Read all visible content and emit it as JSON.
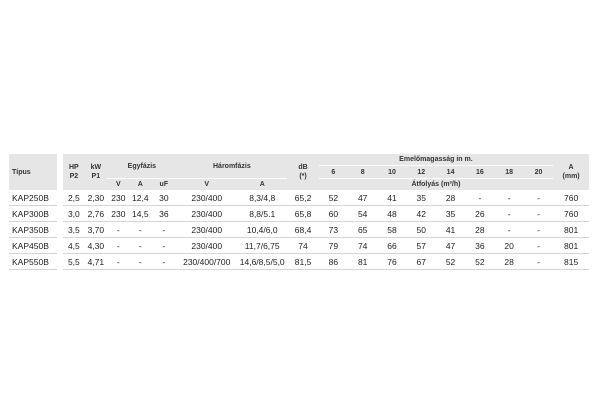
{
  "headers": {
    "tipus": "Típus",
    "hp": "HP",
    "p2": "P2",
    "kw": "kW",
    "p1": "P1",
    "egyfazis": "Egyfázis",
    "haromfazis": "Háromfázis",
    "v": "V",
    "a": "A",
    "uf": "uF",
    "db": "dB",
    "db_unit": "(*)",
    "emelomagassag": "Emelőmagasság in m.",
    "heights": [
      "6",
      "8",
      "10",
      "12",
      "14",
      "16",
      "18",
      "20"
    ],
    "atfolyas": "Átfolyás (m³/h)",
    "a_len": "A",
    "a_len_unit": "(mm)"
  },
  "rows": [
    {
      "tipus": "KAP250B",
      "hp": "2,5",
      "kw": "2,30",
      "v1": "230",
      "a1": "12,4",
      "uf": "30",
      "v3": "230/400",
      "a3": "8,3/4,8",
      "db": "65,2",
      "flows": [
        "52",
        "47",
        "41",
        "35",
        "28",
        "-",
        "-",
        "-"
      ],
      "a": "760"
    },
    {
      "tipus": "KAP300B",
      "hp": "3,0",
      "kw": "2,76",
      "v1": "230",
      "a1": "14,5",
      "uf": "36",
      "v3": "230/400",
      "a3": "8,8/5.1",
      "db": "65,8",
      "flows": [
        "60",
        "54",
        "48",
        "42",
        "35",
        "26",
        "-",
        "-"
      ],
      "a": "760"
    },
    {
      "tipus": "KAP350B",
      "hp": "3,5",
      "kw": "3,70",
      "v1": "-",
      "a1": "-",
      "uf": "-",
      "v3": "230/400",
      "a3": "10,4/6,0",
      "db": "68,4",
      "flows": [
        "73",
        "65",
        "58",
        "50",
        "41",
        "28",
        "-",
        "-"
      ],
      "a": "801"
    },
    {
      "tipus": "KAP450B",
      "hp": "4,5",
      "kw": "4,30",
      "v1": "-",
      "a1": "-",
      "uf": "-",
      "v3": "230/400",
      "a3": "11,7/6,75",
      "db": "74",
      "flows": [
        "79",
        "74",
        "66",
        "57",
        "47",
        "36",
        "20",
        "-"
      ],
      "a": "801"
    },
    {
      "tipus": "KAP550B",
      "hp": "5,5",
      "kw": "4,71",
      "v1": "-",
      "a1": "-",
      "uf": "-",
      "v3": "230/400/700",
      "a3": "14,6/8,5/5,0",
      "db": "81,5",
      "flows": [
        "86",
        "81",
        "76",
        "67",
        "52",
        "52",
        "28",
        "-"
      ],
      "a": "815"
    }
  ]
}
